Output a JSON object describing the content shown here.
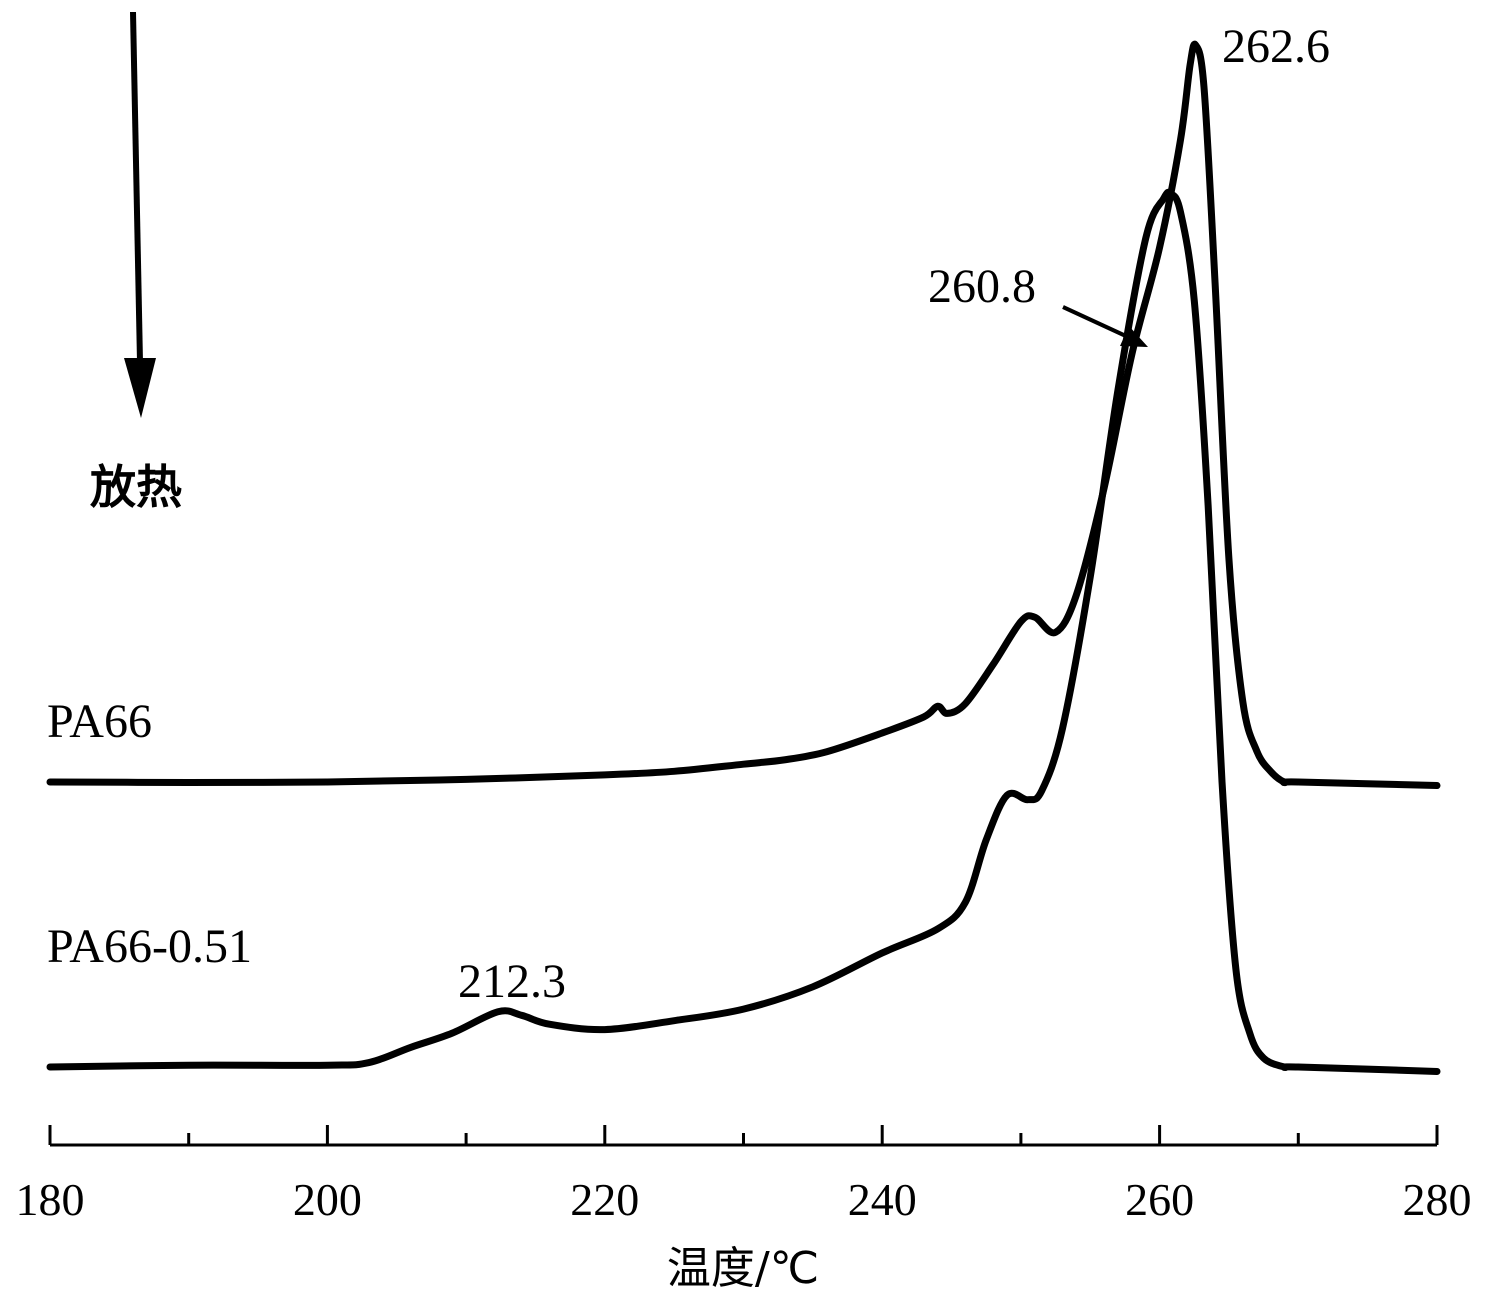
{
  "chart_data": {
    "type": "line",
    "xlabel": "温度/℃",
    "xlim": [
      180,
      280
    ],
    "xticks": [
      180,
      200,
      220,
      240,
      260,
      280
    ],
    "minor_step": 10,
    "direction_label": "放热",
    "grid": false,
    "series": [
      {
        "name": "PA66",
        "peak": 262.6,
        "peak_label": "262.6",
        "points": [
          [
            180,
            0.0
          ],
          [
            190,
            0.005
          ],
          [
            200,
            0.0
          ],
          [
            210,
            -0.03
          ],
          [
            220,
            -0.08
          ],
          [
            225,
            -0.12
          ],
          [
            230,
            -0.2
          ],
          [
            233,
            -0.25
          ],
          [
            236,
            -0.34
          ],
          [
            240,
            -0.55
          ],
          [
            243,
            -0.73
          ],
          [
            244,
            -0.85
          ],
          [
            244.7,
            -0.77
          ],
          [
            246,
            -0.88
          ],
          [
            248,
            -1.32
          ],
          [
            250,
            -1.8
          ],
          [
            251,
            -1.85
          ],
          [
            252.5,
            -1.68
          ],
          [
            254,
            -2.1
          ],
          [
            256,
            -3.3
          ],
          [
            258,
            -4.8
          ],
          [
            260,
            -6.0
          ],
          [
            261.5,
            -7.2
          ],
          [
            262.2,
            -8.05
          ],
          [
            262.6,
            -8.27
          ],
          [
            263.2,
            -7.8
          ],
          [
            264,
            -5.6
          ],
          [
            265,
            -2.5
          ],
          [
            266,
            -0.9
          ],
          [
            267,
            -0.35
          ],
          [
            268,
            -0.12
          ],
          [
            269,
            0.0
          ],
          [
            270,
            0.0
          ],
          [
            280,
            0.04
          ]
        ]
      },
      {
        "name": "PA66-0.51",
        "peak": 260.8,
        "peak_label": "260.8",
        "points": [
          [
            180,
            0.0
          ],
          [
            190,
            -0.02
          ],
          [
            200,
            -0.02
          ],
          [
            203,
            -0.05
          ],
          [
            206,
            -0.22
          ],
          [
            209,
            -0.38
          ],
          [
            212.3,
            -0.62
          ],
          [
            214,
            -0.58
          ],
          [
            216,
            -0.48
          ],
          [
            220,
            -0.42
          ],
          [
            225,
            -0.52
          ],
          [
            230,
            -0.65
          ],
          [
            235,
            -0.9
          ],
          [
            240,
            -1.28
          ],
          [
            244,
            -1.55
          ],
          [
            246,
            -1.85
          ],
          [
            247.5,
            -2.55
          ],
          [
            249,
            -3.05
          ],
          [
            250.5,
            -3.0
          ],
          [
            251.5,
            -3.1
          ],
          [
            253,
            -3.8
          ],
          [
            255,
            -5.5
          ],
          [
            257,
            -7.6
          ],
          [
            259,
            -9.3
          ],
          [
            260.3,
            -9.75
          ],
          [
            260.8,
            -9.8
          ],
          [
            261.5,
            -9.6
          ],
          [
            262.5,
            -8.6
          ],
          [
            263.5,
            -6.3
          ],
          [
            264.5,
            -3.2
          ],
          [
            265.5,
            -1.1
          ],
          [
            266.5,
            -0.38
          ],
          [
            267.5,
            -0.1
          ],
          [
            269,
            0.0
          ],
          [
            270,
            0.0
          ],
          [
            280,
            0.05
          ]
        ]
      }
    ],
    "annotations": [
      {
        "text": "212.3",
        "x": 212.3
      },
      {
        "text": "260.8",
        "x": 260.8,
        "arrow": true
      },
      {
        "text": "262.6",
        "x": 262.6
      }
    ]
  }
}
